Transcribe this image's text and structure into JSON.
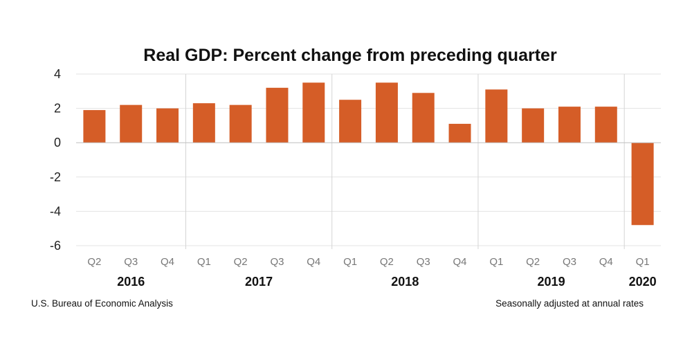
{
  "chart_data": {
    "type": "bar",
    "title": "Real GDP:  Percent change from preceding quarter",
    "xlabel": "",
    "ylabel": "",
    "ylim": [
      -6,
      4
    ],
    "yticks": [
      "4",
      "2",
      "0",
      "-2",
      "-4",
      "-6"
    ],
    "ytick_values": [
      4,
      2,
      0,
      -2,
      -4,
      -6
    ],
    "grid": true,
    "bar_color": "#d55d27",
    "categories": [
      "Q2",
      "Q3",
      "Q4",
      "Q1",
      "Q2",
      "Q3",
      "Q4",
      "Q1",
      "Q2",
      "Q3",
      "Q4",
      "Q1",
      "Q2",
      "Q3",
      "Q4",
      "Q1"
    ],
    "values": [
      1.9,
      2.2,
      2.0,
      2.3,
      2.2,
      3.2,
      3.5,
      2.5,
      3.5,
      2.9,
      1.1,
      3.1,
      2.0,
      2.1,
      2.1,
      -4.8
    ],
    "year_groups": [
      {
        "label": "2016",
        "start": 0,
        "end": 2
      },
      {
        "label": "2017",
        "start": 3,
        "end": 6
      },
      {
        "label": "2018",
        "start": 7,
        "end": 10
      },
      {
        "label": "2019",
        "start": 11,
        "end": 14
      },
      {
        "label": "2020",
        "start": 15,
        "end": 15
      }
    ]
  },
  "footer": {
    "source": "U.S. Bureau of Economic Analysis",
    "note": "Seasonally adjusted at annual rates"
  }
}
